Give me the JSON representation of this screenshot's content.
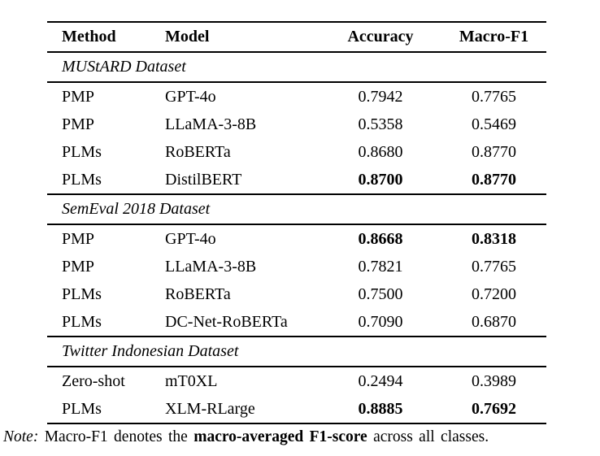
{
  "table": {
    "columns": [
      "Method",
      "Model",
      "Accuracy",
      "Macro-F1"
    ],
    "sections": [
      {
        "title": "MUStARD Dataset",
        "rows": [
          {
            "method": "PMP",
            "model": "GPT-4o",
            "accuracy": "0.7942",
            "macro_f1": "0.7765",
            "bold_values": false
          },
          {
            "method": "PMP",
            "model": "LLaMA-3-8B",
            "accuracy": "0.5358",
            "macro_f1": "0.5469",
            "bold_values": false
          },
          {
            "method": "PLMs",
            "model": "RoBERTa",
            "accuracy": "0.8680",
            "macro_f1": "0.8770",
            "bold_values": false
          },
          {
            "method": "PLMs",
            "model": "DistilBERT",
            "accuracy": "0.8700",
            "macro_f1": "0.8770",
            "bold_values": true
          }
        ]
      },
      {
        "title": "SemEval 2018 Dataset",
        "rows": [
          {
            "method": "PMP",
            "model": "GPT-4o",
            "accuracy": "0.8668",
            "macro_f1": "0.8318",
            "bold_values": true
          },
          {
            "method": "PMP",
            "model": "LLaMA-3-8B",
            "accuracy": "0.7821",
            "macro_f1": "0.7765",
            "bold_values": false
          },
          {
            "method": "PLMs",
            "model": "RoBERTa",
            "accuracy": "0.7500",
            "macro_f1": "0.7200",
            "bold_values": false
          },
          {
            "method": "PLMs",
            "model": "DC-Net-RoBERTa",
            "accuracy": "0.7090",
            "macro_f1": "0.6870",
            "bold_values": false
          }
        ]
      },
      {
        "title": "Twitter Indonesian Dataset",
        "rows": [
          {
            "method": "Zero-shot",
            "model": "mT0XL",
            "accuracy": "0.2494",
            "macro_f1": "0.3989",
            "bold_values": false
          },
          {
            "method": "PLMs",
            "model": "XLM-RLarge",
            "accuracy": "0.8885",
            "macro_f1": "0.7692",
            "bold_values": true
          }
        ]
      }
    ]
  },
  "note": {
    "label": "Note:",
    "text_before_bold": " Macro-F1 denotes the ",
    "bold_text": "macro-averaged F1-score",
    "text_after_bold": " across all classes."
  }
}
